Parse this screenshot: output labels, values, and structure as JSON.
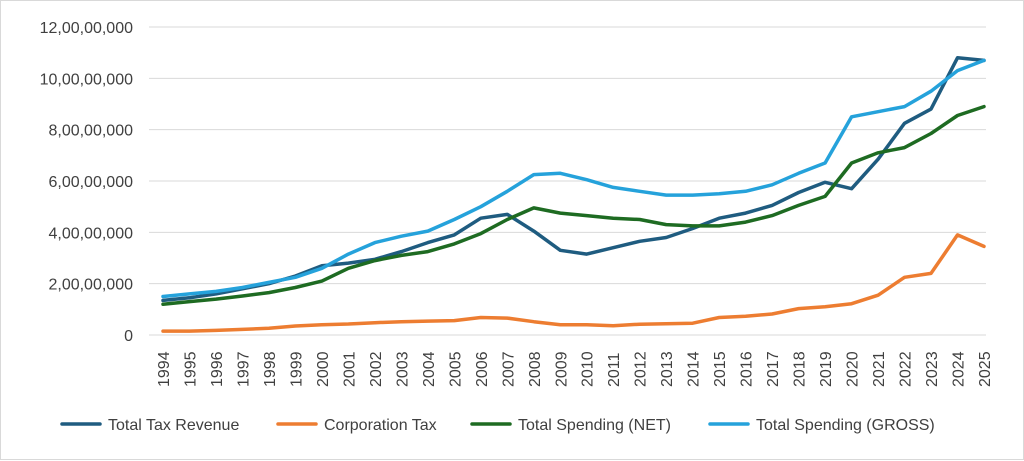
{
  "chart_data": {
    "type": "line",
    "title": "",
    "xlabel": "",
    "ylabel": "",
    "ylim": [
      0,
      120000000
    ],
    "y_ticks": [
      0,
      20000000,
      40000000,
      60000000,
      80000000,
      100000000,
      120000000
    ],
    "y_tick_labels": [
      "0",
      "2,00,00,000",
      "4,00,00,000",
      "6,00,00,000",
      "8,00,00,000",
      "10,00,00,000",
      "12,00,00,000"
    ],
    "grid": true,
    "legend": "bottom",
    "categories": [
      "1994",
      "1995",
      "1996",
      "1997",
      "1998",
      "1999",
      "2000",
      "2001",
      "2002",
      "2003",
      "2004",
      "2005",
      "2006",
      "2007",
      "2008",
      "2009",
      "2010",
      "2011",
      "2012",
      "2013",
      "2014",
      "2015",
      "2016",
      "2017",
      "2018",
      "2019",
      "2020",
      "2021",
      "2022",
      "2023",
      "2024",
      "2025"
    ],
    "series": [
      {
        "name": "Total Tax Revenue",
        "color": "#1f5c80",
        "values": [
          13500000,
          14500000,
          16000000,
          18000000,
          20000000,
          23000000,
          27000000,
          28000000,
          29500000,
          32500000,
          36000000,
          39000000,
          45500000,
          47000000,
          40500000,
          33000000,
          31500000,
          34000000,
          36500000,
          38000000,
          41500000,
          45500000,
          47500000,
          50500000,
          55500000,
          59500000,
          57000000,
          68500000,
          82500000,
          88000000,
          108000000,
          107000000
        ]
      },
      {
        "name": "Corporation Tax",
        "color": "#ed7d31",
        "values": [
          1500000,
          1500000,
          1800000,
          2200000,
          2600000,
          3500000,
          4000000,
          4300000,
          4800000,
          5200000,
          5400000,
          5600000,
          6800000,
          6600000,
          5200000,
          4000000,
          4000000,
          3600000,
          4200000,
          4400000,
          4600000,
          6800000,
          7300000,
          8200000,
          10300000,
          11000000,
          12200000,
          15500000,
          22500000,
          24000000,
          39000000,
          34500000
        ]
      },
      {
        "name": "Total Spending (NET)",
        "color": "#1e6b22",
        "values": [
          12000000,
          13000000,
          14000000,
          15200000,
          16500000,
          18500000,
          21000000,
          26000000,
          29000000,
          31000000,
          32500000,
          35500000,
          39500000,
          45000000,
          49500000,
          47500000,
          46500000,
          45500000,
          45000000,
          43000000,
          42500000,
          42500000,
          44000000,
          46500000,
          50500000,
          54000000,
          67000000,
          71000000,
          73000000,
          78500000,
          85500000,
          89000000
        ]
      },
      {
        "name": "Total Spending (GROSS)",
        "color": "#25a2db",
        "values": [
          15000000,
          16000000,
          17000000,
          18500000,
          20500000,
          22500000,
          26000000,
          31500000,
          36000000,
          38500000,
          40500000,
          45000000,
          50000000,
          56000000,
          62500000,
          63000000,
          60500000,
          57500000,
          56000000,
          54500000,
          54500000,
          55000000,
          56000000,
          58500000,
          63000000,
          67000000,
          85000000,
          87000000,
          89000000,
          95000000,
          103000000,
          107000000
        ]
      }
    ]
  }
}
